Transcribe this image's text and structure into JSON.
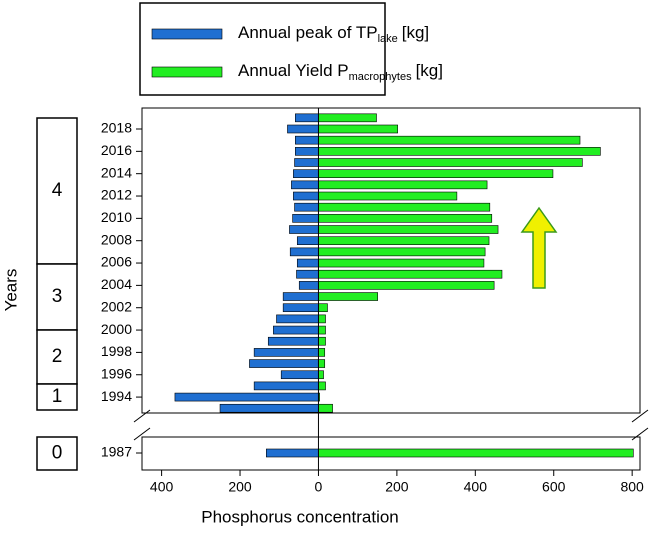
{
  "chart_data": {
    "type": "bar",
    "orientation": "horizontal",
    "x_label": "Phosphorus concentration",
    "y_label": "Years",
    "categories": [
      1987,
      null,
      1994,
      null,
      1996,
      null,
      1998,
      null,
      2000,
      null,
      2002,
      null,
      2004,
      null,
      2006,
      null,
      2008,
      null,
      2010,
      null,
      2012,
      null,
      2014,
      null,
      2016,
      null,
      2018,
      null
    ],
    "series": [
      {
        "name": "Annual peak of  TP",
        "name_sub": "lake",
        "name_unit": "[kg]",
        "color": "#1f6fd1",
        "values": [
          -133,
          -251,
          -366,
          -164,
          -95,
          -176,
          -164,
          -128,
          -115,
          -107,
          -90,
          -90,
          -49,
          -56,
          -54,
          -72,
          -54,
          -74,
          -66,
          -61,
          -64,
          -69,
          -64,
          -61,
          -59,
          -59,
          -79,
          -59
        ]
      },
      {
        "name": "Annual Yield P",
        "name_sub": "macrophytes",
        "name_unit": "[kg]",
        "color": "#22ee22",
        "values": [
          803,
          36,
          3,
          18,
          13,
          16,
          16,
          18,
          18,
          18,
          23,
          151,
          448,
          468,
          422,
          425,
          435,
          458,
          442,
          437,
          353,
          430,
          598,
          673,
          719,
          667,
          202,
          148
        ]
      }
    ],
    "periods": [
      "4",
      "3",
      "2",
      "1",
      "0"
    ],
    "xlim": [
      -450,
      820
    ],
    "xticks": [
      {
        "value": -400,
        "label": "400"
      },
      {
        "value": -200,
        "label": "200"
      },
      0,
      200,
      400,
      600,
      800
    ]
  }
}
